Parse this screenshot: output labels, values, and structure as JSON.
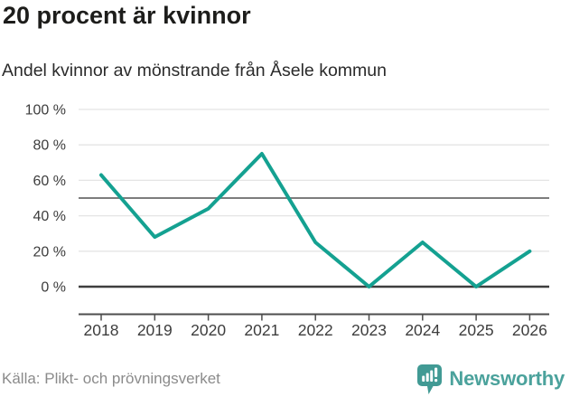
{
  "header": {
    "title": "20 procent är kvinnor",
    "subtitle": "Andel kvinnor av mönstrande från Åsele kommun"
  },
  "chart_data": {
    "type": "line",
    "title": "20 procent är kvinnor",
    "subtitle": "Andel kvinnor av mönstrande från Åsele kommun",
    "categories": [
      "2018",
      "2019",
      "2020",
      "2021",
      "2022",
      "2023",
      "2024",
      "2025",
      "2026"
    ],
    "series": [
      {
        "name": "Andel kvinnor",
        "values": [
          63,
          28,
          44,
          75,
          25,
          0,
          25,
          0,
          20
        ]
      }
    ],
    "ylim": [
      0,
      100
    ],
    "yticks": [
      0,
      20,
      40,
      60,
      80,
      100
    ],
    "ytick_labels": [
      "0 %",
      "20 %",
      "40 %",
      "60 %",
      "80 %",
      "100 %"
    ],
    "reference_line": 50,
    "grid": true,
    "legend": "none",
    "line_color": "#14a191"
  },
  "footer": {
    "source": "Källa: Plikt- och prövningsverket",
    "brand": "Newsworthy"
  },
  "colors": {
    "background": "#ffffff",
    "title": "#1d1d1b",
    "subtitle": "#2b2b2b",
    "tick_label": "#3d3d3d",
    "grid": "#e4e4e4",
    "reference": "#7d7d7d",
    "zero_line": "#3f3f3f",
    "axis": "#4d4d4d",
    "line": "#14a191",
    "logo_icon": "#419a94",
    "logo_text": "#4ba29c",
    "source_text": "#8b8b8b"
  }
}
